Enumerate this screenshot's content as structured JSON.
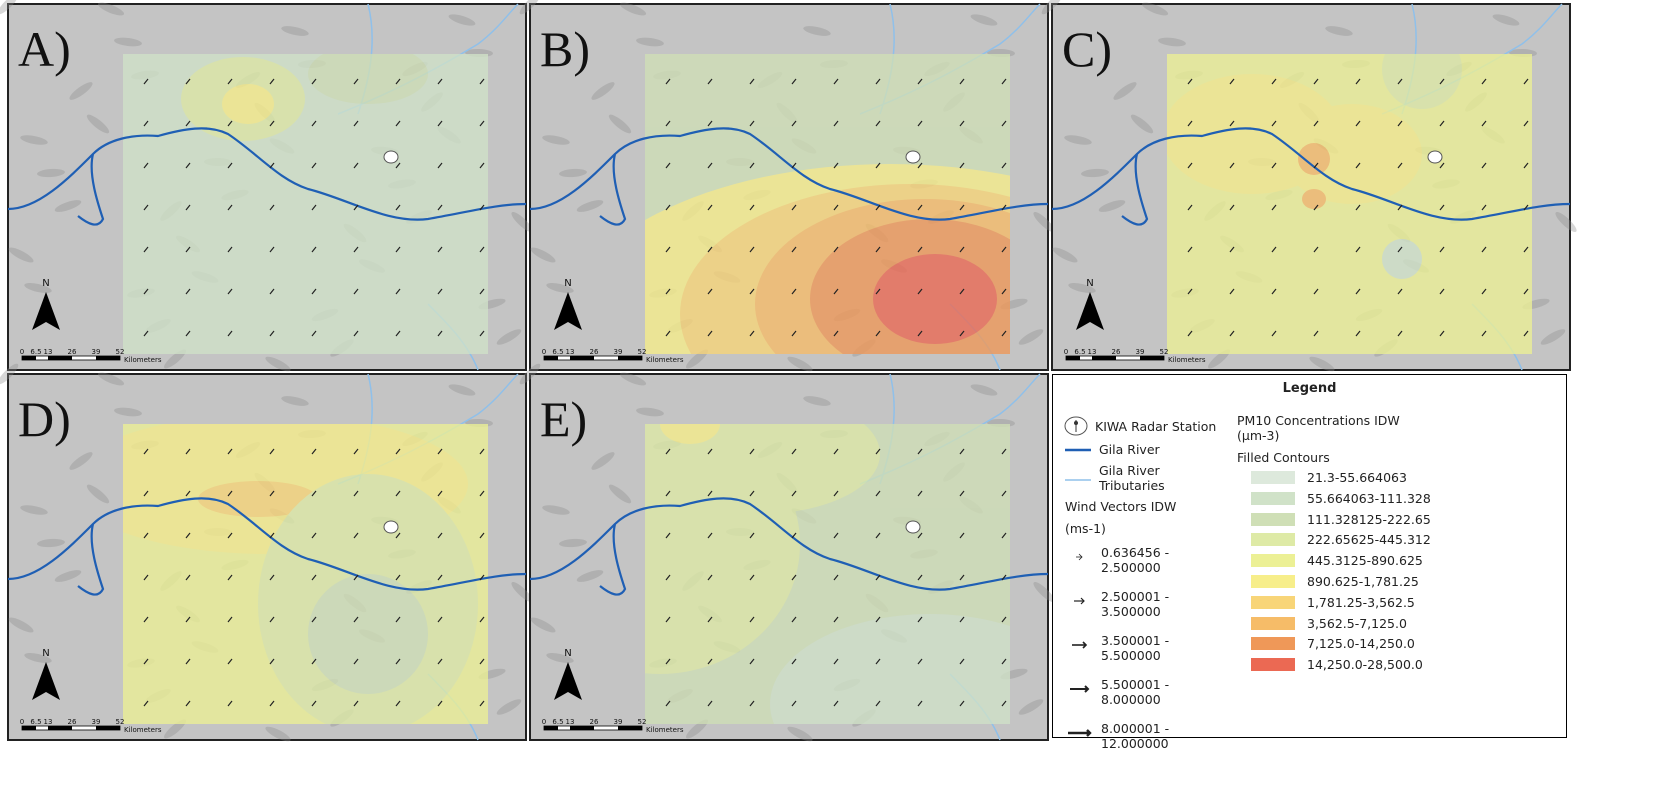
{
  "panels": [
    {
      "label": "A)"
    },
    {
      "label": "B)"
    },
    {
      "label": "C)"
    },
    {
      "label": "D)"
    },
    {
      "label": "E)"
    }
  ],
  "north": "N",
  "scale_bar": {
    "ticks": [
      "0",
      "6.5",
      "13",
      "26",
      "39",
      "52"
    ],
    "unit": "Kilometers"
  },
  "legend": {
    "title": "Legend",
    "radar": "KIWA Radar Station",
    "river": "Gila River",
    "tributaries": "Gila River Tributaries",
    "wind_title": "Wind Vectors IDW",
    "wind_unit": "(ms-1)",
    "wind_classes": [
      [
        "0.636456 -",
        "2.500000"
      ],
      [
        "2.500001 -",
        "3.500000"
      ],
      [
        "3.500001 -",
        "5.500000"
      ],
      [
        "5.500001 -",
        "8.000000"
      ],
      [
        "8.000001 -",
        "12.000000"
      ]
    ],
    "pm_title": "PM10 Concentrations IDW (μm-3)",
    "contour_title": "Filled Contours",
    "contours": [
      {
        "label": "21.3-55.664063",
        "color": "#dde9dc"
      },
      {
        "label": "55.664063-111.328",
        "color": "#d0e2c8"
      },
      {
        "label": "111.328125-222.65",
        "color": "#cfdfb6"
      },
      {
        "label": "222.65625-445.312",
        "color": "#deeaa6"
      },
      {
        "label": "445.3125-890.625",
        "color": "#ecf095"
      },
      {
        "label": "890.625-1,781.25",
        "color": "#f7ee8a"
      },
      {
        "label": "1,781.25-3,562.5",
        "color": "#f8d578"
      },
      {
        "label": "3,562.5-7,125.0",
        "color": "#f6bc68"
      },
      {
        "label": "7,125.0-14,250.0",
        "color": "#ef9858"
      },
      {
        "label": "14,250.0-28,500.0",
        "color": "#eb6953"
      }
    ]
  }
}
